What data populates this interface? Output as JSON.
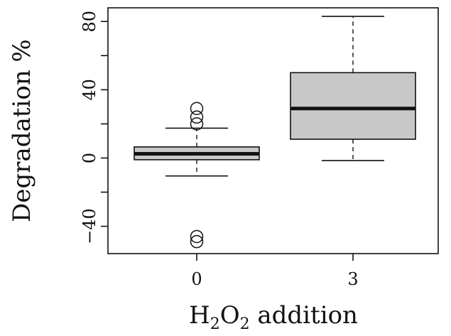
{
  "chart_data": {
    "type": "boxplot",
    "xlabel": {
      "main": "H",
      "sub1": "2",
      "mid": "O",
      "sub2": "2",
      "rest": " addition"
    },
    "ylabel": "Degradation %",
    "ylim": [
      -56,
      88
    ],
    "y_ticks": [
      -40,
      0,
      40,
      80
    ],
    "y_minor_ticks": [
      -20,
      20,
      60
    ],
    "grid": false,
    "categories": [
      "0",
      "3"
    ],
    "colors": {
      "box_fill": "#c8c8c8",
      "line": "#111111"
    },
    "boxes": [
      {
        "category": "0",
        "whisker_low": -10.5,
        "q1": -1,
        "median": 2.5,
        "q3": 6.5,
        "whisker_high": 17.5,
        "outliers": [
          20,
          24,
          29,
          -46,
          -49
        ]
      },
      {
        "category": "3",
        "whisker_low": -1.5,
        "q1": 11,
        "median": 29,
        "q3": 50,
        "whisker_high": 83,
        "outliers": []
      }
    ]
  }
}
